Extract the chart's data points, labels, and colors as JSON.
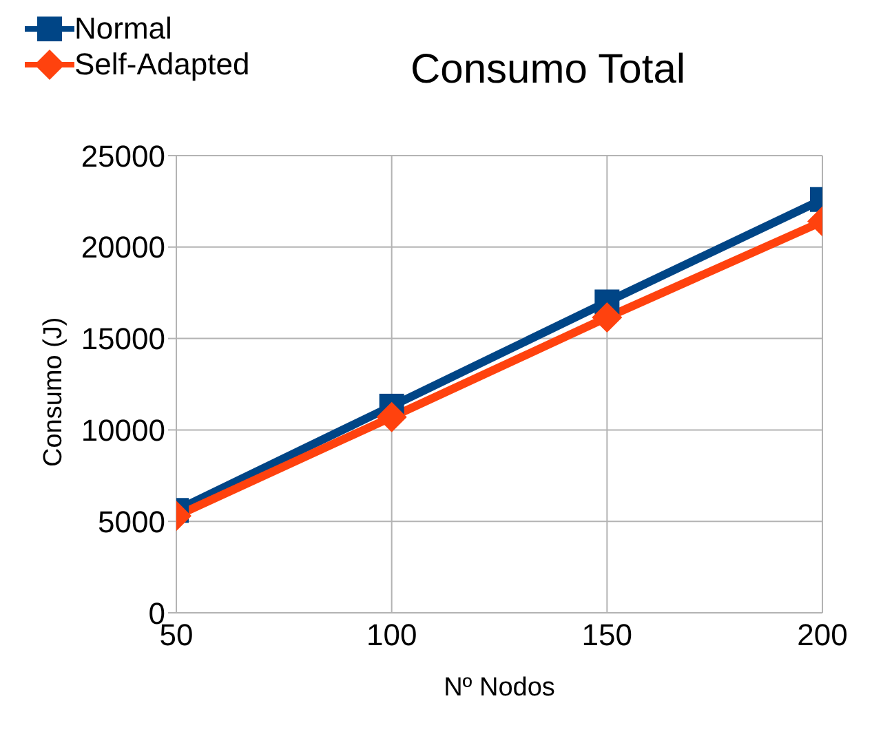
{
  "chart_data": {
    "type": "line",
    "title": "Consumo Total",
    "xlabel": "Nº Nodos",
    "ylabel": "Consumo (J)",
    "x": [
      50,
      100,
      150,
      200
    ],
    "xlim": [
      50,
      200
    ],
    "xticks": [
      50,
      100,
      150,
      200
    ],
    "ylim": [
      0,
      25000
    ],
    "yticks": [
      0,
      5000,
      10000,
      15000,
      20000,
      25000
    ],
    "series": [
      {
        "name": "Normal",
        "color": "#004586",
        "marker": "square",
        "values": [
          5600,
          11300,
          17000,
          22600
        ]
      },
      {
        "name": "Self-Adapted",
        "color": "#ff420e",
        "marker": "diamond",
        "values": [
          5300,
          10700,
          16150,
          21400
        ]
      }
    ],
    "grid": true,
    "legend": "top left",
    "line_style": "solid"
  }
}
